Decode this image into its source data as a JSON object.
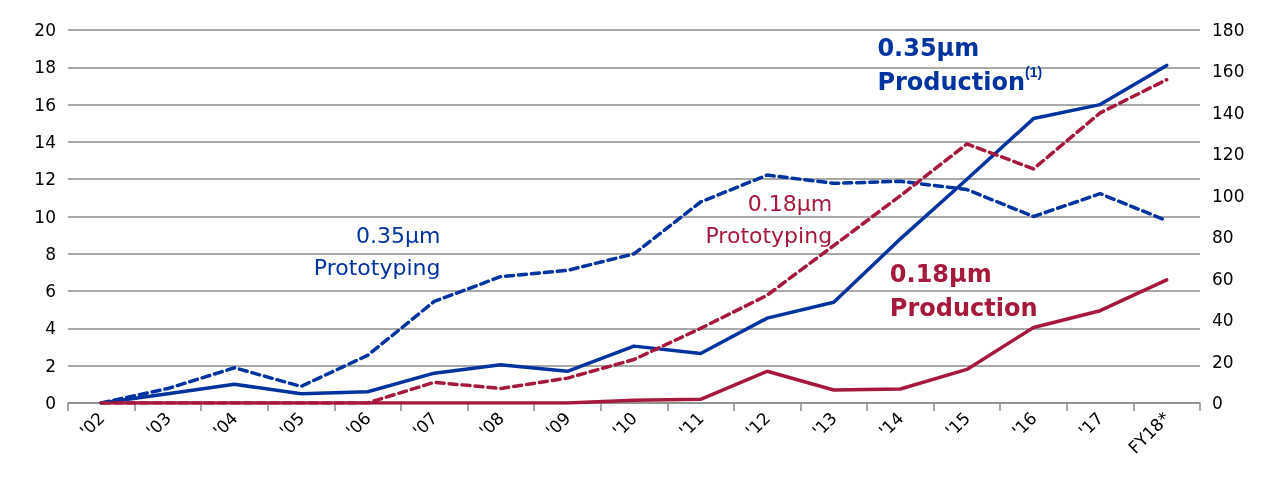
{
  "chart_data": {
    "type": "line",
    "categories": [
      "'02",
      "'03",
      "'04",
      "'05",
      "'06",
      "'07",
      "'08",
      "'09",
      "'10",
      "'11",
      "'12",
      "'13",
      "'14",
      "'15",
      "'16",
      "'17",
      "FY18*"
    ],
    "series": [
      {
        "name": "0.35µm\nProduction$^{(1)}$",
        "color": "#0033a0",
        "line_style": "solid",
        "values": [
          0,
          0.5,
          1.0,
          0.5,
          0.6,
          1.6,
          2.05,
          1.7,
          3.05,
          2.65,
          4.55,
          5.4,
          8.8,
          12.0,
          15.25,
          16.0,
          18.1
        ]
      },
      {
        "name": "0.18µm\nProduction",
        "color": "#a6193c",
        "line_style": "solid",
        "values": [
          0,
          0,
          0,
          0,
          0,
          0,
          0,
          0,
          0.15,
          0.2,
          1.7,
          0.7,
          0.75,
          1.8,
          4.05,
          4.95,
          6.6
        ]
      },
      {
        "name": "0.35µm\nPrototyping",
        "color": "#0033a0",
        "line_style": "dashed",
        "axis": "y2",
        "values": [
          0,
          7,
          17,
          8,
          23,
          49,
          61,
          64,
          72,
          97,
          110,
          106,
          107,
          103,
          90,
          101,
          88
        ]
      },
      {
        "name": "0.18µm\nPrototyping",
        "color": "#a6193c",
        "line_style": "dashed",
        "axis": "y2",
        "values": [
          0,
          0,
          0,
          0,
          0,
          10,
          7,
          12,
          21,
          36,
          52,
          76,
          100,
          125,
          113,
          140,
          156
        ]
      }
    ],
    "ylim": [
      0,
      20
    ],
    "yticks": [
      0,
      2,
      4,
      6,
      8,
      10,
      12,
      14,
      16,
      18,
      20
    ],
    "y2lim": [
      0,
      180
    ],
    "y2ticks": [
      0,
      20,
      40,
      60,
      80,
      100,
      120,
      140,
      160,
      180
    ],
    "grid": "y",
    "marker": "none"
  }
}
